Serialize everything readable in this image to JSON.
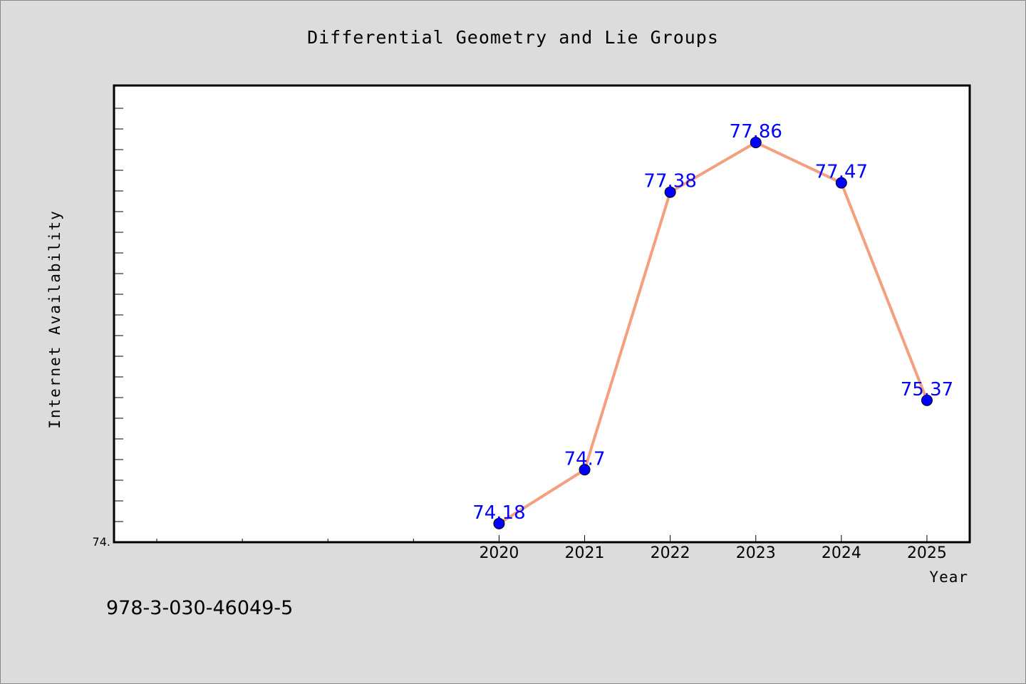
{
  "chart_data": {
    "type": "line",
    "title": "Differential Geometry and Lie Groups",
    "xlabel": "Year",
    "ylabel": "Internet Availability",
    "x": [
      2020,
      2021,
      2022,
      2023,
      2024,
      2025
    ],
    "series": [
      {
        "values": [
          74.18,
          74.7,
          77.38,
          77.86,
          77.47,
          75.37
        ],
        "point_labels": [
          "74.18",
          "74.7",
          "77.38",
          "77.86",
          "77.47",
          "75.37"
        ]
      }
    ],
    "xlim": [
      2015.5,
      2025.5
    ],
    "ylim": [
      74.0,
      78.41
    ],
    "y_tick_label": "74.",
    "grid": false,
    "line_color": "#f4a07f",
    "marker_color": "#0000ff",
    "label_color": "#0000ff"
  },
  "footer": {
    "identifier": "978-3-030-46049-5"
  }
}
